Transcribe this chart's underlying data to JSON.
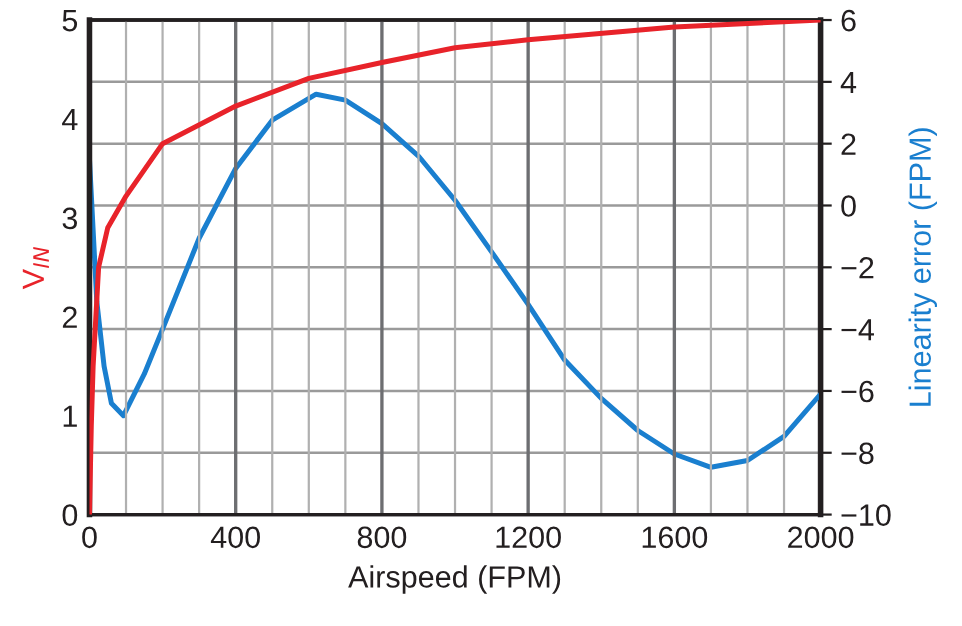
{
  "chart_data": {
    "type": "line",
    "xlabel": "Airspeed (FPM)",
    "ylabel": "V$_{IN}$",
    "y2label": "Linearity error (FPM)",
    "xlim": [
      0,
      2000
    ],
    "xticks": [
      0,
      {
        "value": 100,
        "label": null
      },
      {
        "value": 200,
        "label": null
      },
      {
        "value": 300,
        "label": null
      },
      400,
      {
        "value": 500,
        "label": null
      },
      {
        "value": 600,
        "label": null
      },
      {
        "value": 700,
        "label": null
      },
      800,
      {
        "value": 900,
        "label": null
      },
      {
        "value": 1000,
        "label": null
      },
      {
        "value": 1100,
        "label": null
      },
      1200,
      {
        "value": 1300,
        "label": null
      },
      {
        "value": 1400,
        "label": null
      },
      {
        "value": 1500,
        "label": null
      },
      1600,
      {
        "value": 1700,
        "label": null
      },
      {
        "value": 1800,
        "label": null
      },
      {
        "value": 1900,
        "label": null
      },
      2000
    ],
    "ylim": [
      0,
      5
    ],
    "yticks": [
      0,
      1,
      2,
      3,
      4,
      5
    ],
    "y2lim": [
      -10,
      6
    ],
    "y2ticks": [
      -10,
      -8,
      -6,
      -4,
      -2,
      0,
      2,
      4,
      6
    ],
    "grid": true,
    "legend": false,
    "series": [
      {
        "color": "#e8232a",
        "x": [
          0,
          5,
          10,
          25,
          50,
          100,
          200,
          400,
          600,
          800,
          1000,
          1200,
          1600,
          2000
        ],
        "values": [
          0,
          0.9,
          1.5,
          2.5,
          2.9,
          3.22,
          3.75,
          4.13,
          4.41,
          4.57,
          4.72,
          4.8,
          4.93,
          5.0
        ]
      },
      {
        "color": "#1a7fcf",
        "axis": "y2",
        "x": [
          0,
          20,
          40,
          60,
          93,
          150,
          200,
          300,
          400,
          500,
          620,
          700,
          800,
          900,
          1000,
          1100,
          1200,
          1300,
          1400,
          1500,
          1600,
          1700,
          1800,
          1900,
          2000
        ],
        "values": [
          1.5,
          -3.1,
          -5.2,
          -6.4,
          -6.8,
          -5.45,
          -4.0,
          -1.06,
          1.2,
          2.76,
          3.6,
          3.41,
          2.65,
          1.6,
          0.17,
          -1.5,
          -3.2,
          -5.0,
          -6.24,
          -7.28,
          -8.04,
          -8.47,
          -8.25,
          -7.47,
          -6.1
        ]
      }
    ]
  }
}
